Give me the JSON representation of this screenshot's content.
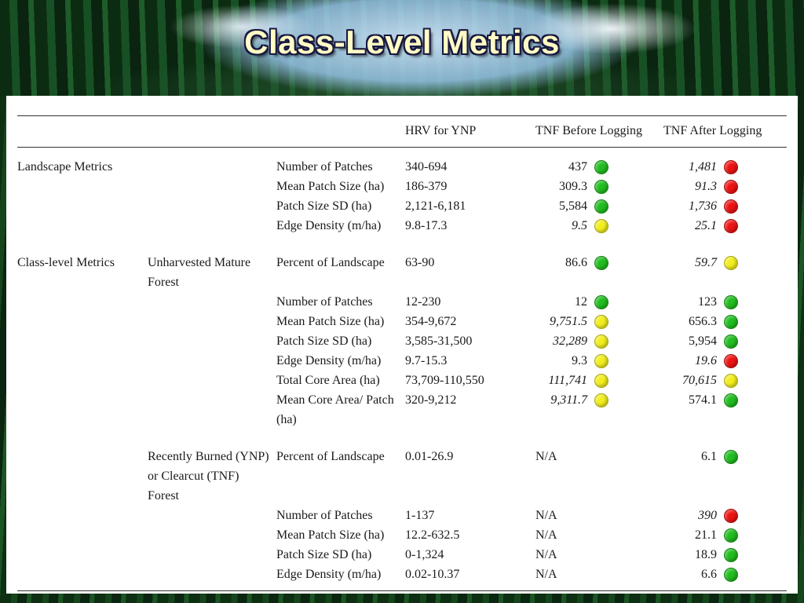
{
  "slide": {
    "title": "Class-Level Metrics"
  },
  "table": {
    "col_headers": {
      "hrv": "HRV for YNP",
      "before": "TNF Before Logging",
      "after": "TNF After Logging"
    },
    "status_colors": {
      "green": "#20bd1e",
      "yellow": "#f2ee1d",
      "red": "#ee1212"
    },
    "rows": [
      {
        "group": "Landscape Metrics",
        "sub": "",
        "metric": "Number of Patches",
        "hrv": "340-694",
        "before": {
          "v": "437",
          "dot": "green",
          "italic": false
        },
        "after": {
          "v": "1,481",
          "dot": "red",
          "italic": true
        },
        "gap": false
      },
      {
        "group": "",
        "sub": "",
        "metric": "Mean Patch Size (ha)",
        "hrv": "186-379",
        "before": {
          "v": "309.3",
          "dot": "green",
          "italic": false
        },
        "after": {
          "v": "91.3",
          "dot": "red",
          "italic": true
        },
        "gap": false
      },
      {
        "group": "",
        "sub": "",
        "metric": "Patch Size SD (ha)",
        "hrv": "2,121-6,181",
        "before": {
          "v": "5,584",
          "dot": "green",
          "italic": false
        },
        "after": {
          "v": "1,736",
          "dot": "red",
          "italic": true
        },
        "gap": false
      },
      {
        "group": "",
        "sub": "",
        "metric": "Edge Density (m/ha)",
        "hrv": "9.8-17.3",
        "before": {
          "v": "9.5",
          "dot": "yellow",
          "italic": true
        },
        "after": {
          "v": "25.1",
          "dot": "red",
          "italic": true
        },
        "gap": false
      },
      {
        "group": "Class-level Metrics",
        "sub": "Unharvested Mature Forest",
        "metric": "Percent of Landscape",
        "hrv": "63-90",
        "before": {
          "v": "86.6",
          "dot": "green",
          "italic": false
        },
        "after": {
          "v": "59.7",
          "dot": "yellow",
          "italic": true
        },
        "gap": true
      },
      {
        "group": "",
        "sub": "",
        "metric": "Number of Patches",
        "hrv": "12-230",
        "before": {
          "v": "12",
          "dot": "green",
          "italic": false
        },
        "after": {
          "v": "123",
          "dot": "green",
          "italic": false
        },
        "gap": false
      },
      {
        "group": "",
        "sub": "",
        "metric": "Mean Patch Size (ha)",
        "hrv": "354-9,672",
        "before": {
          "v": "9,751.5",
          "dot": "yellow",
          "italic": true
        },
        "after": {
          "v": "656.3",
          "dot": "green",
          "italic": false
        },
        "gap": false
      },
      {
        "group": "",
        "sub": "",
        "metric": "Patch Size SD (ha)",
        "hrv": "3,585-31,500",
        "before": {
          "v": "32,289",
          "dot": "yellow",
          "italic": true
        },
        "after": {
          "v": "5,954",
          "dot": "green",
          "italic": false
        },
        "gap": false
      },
      {
        "group": "",
        "sub": "",
        "metric": "Edge Density (m/ha)",
        "hrv": "9.7-15.3",
        "before": {
          "v": "9.3",
          "dot": "yellow",
          "italic": false
        },
        "after": {
          "v": "19.6",
          "dot": "red",
          "italic": true
        },
        "gap": false
      },
      {
        "group": "",
        "sub": "",
        "metric": "Total Core Area (ha)",
        "hrv": "73,709-110,550",
        "before": {
          "v": "111,741",
          "dot": "yellow",
          "italic": true
        },
        "after": {
          "v": "70,615",
          "dot": "yellow",
          "italic": true
        },
        "gap": false
      },
      {
        "group": "",
        "sub": "",
        "metric": "Mean Core Area/ Patch (ha)",
        "hrv": "320-9,212",
        "before": {
          "v": "9,311.7",
          "dot": "yellow",
          "italic": true
        },
        "after": {
          "v": "574.1",
          "dot": "green",
          "italic": false
        },
        "gap": false
      },
      {
        "group": "",
        "sub": "Recently Burned (YNP) or Clearcut (TNF) Forest",
        "metric": "Percent of Landscape",
        "hrv": "0.01-26.9",
        "before": {
          "v": "N/A",
          "dot": null,
          "italic": false
        },
        "after": {
          "v": "6.1",
          "dot": "green",
          "italic": false
        },
        "gap": true
      },
      {
        "group": "",
        "sub": "",
        "metric": "Number of Patches",
        "hrv": "1-137",
        "before": {
          "v": "N/A",
          "dot": null,
          "italic": false
        },
        "after": {
          "v": "390",
          "dot": "red",
          "italic": true
        },
        "gap": false
      },
      {
        "group": "",
        "sub": "",
        "metric": "Mean Patch Size (ha)",
        "hrv": "12.2-632.5",
        "before": {
          "v": "N/A",
          "dot": null,
          "italic": false
        },
        "after": {
          "v": "21.1",
          "dot": "green",
          "italic": false
        },
        "gap": false
      },
      {
        "group": "",
        "sub": "",
        "metric": "Patch Size SD (ha)",
        "hrv": "0-1,324",
        "before": {
          "v": "N/A",
          "dot": null,
          "italic": false
        },
        "after": {
          "v": "18.9",
          "dot": "green",
          "italic": false
        },
        "gap": false
      },
      {
        "group": "",
        "sub": "",
        "metric": "Edge Density (m/ha)",
        "hrv": "0.02-10.37",
        "before": {
          "v": "N/A",
          "dot": null,
          "italic": false
        },
        "after": {
          "v": "6.6",
          "dot": "green",
          "italic": false
        },
        "gap": false
      }
    ]
  }
}
